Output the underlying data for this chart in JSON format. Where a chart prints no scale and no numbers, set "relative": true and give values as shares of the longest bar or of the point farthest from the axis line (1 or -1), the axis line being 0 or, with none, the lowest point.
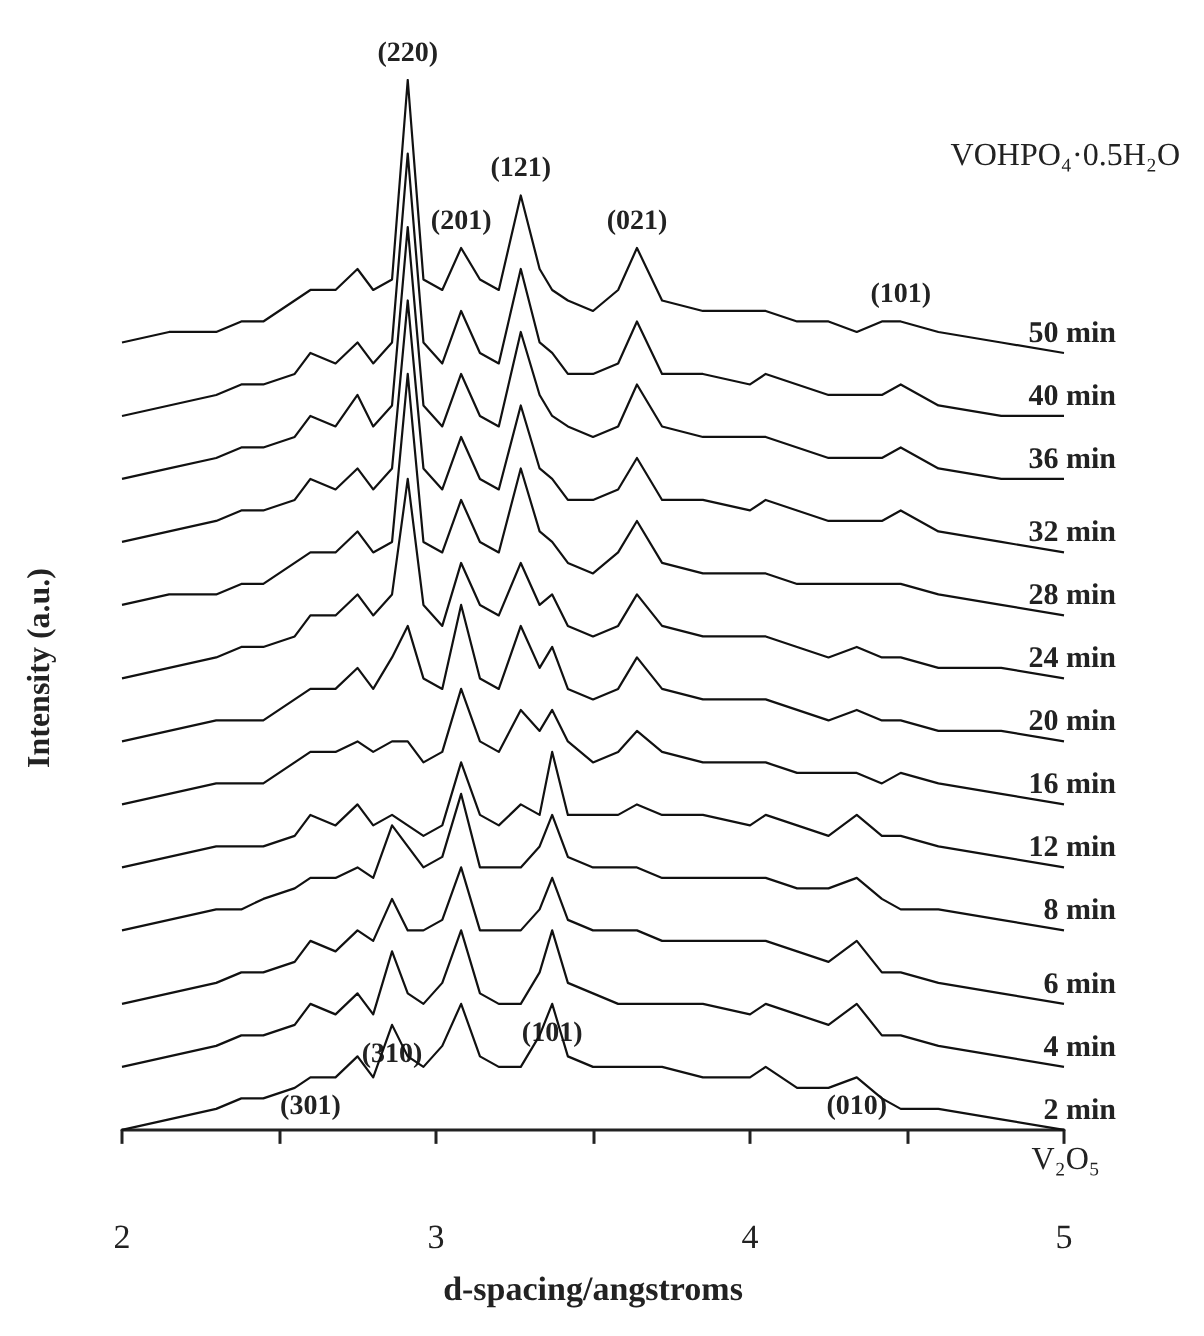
{
  "chart_data": {
    "type": "line",
    "relative": true,
    "xlabel": "d-spacing/angstroms",
    "ylabel": "Intensity (a.u.)",
    "xlim": [
      2,
      5
    ],
    "xticks": [
      2,
      {
        "value": 2.5,
        "label": null
      },
      3,
      {
        "value": 3.5,
        "label": null
      },
      4,
      {
        "value": 4.5,
        "label": null
      },
      5
    ],
    "legend": false,
    "grid": false,
    "marker": "none",
    "x": [
      2.0,
      2.15,
      2.3,
      2.38,
      2.45,
      2.55,
      2.6,
      2.68,
      2.75,
      2.8,
      2.86,
      2.91,
      2.96,
      3.02,
      3.08,
      3.14,
      3.2,
      3.27,
      3.33,
      3.37,
      3.42,
      3.5,
      3.58,
      3.64,
      3.72,
      3.85,
      4.0,
      4.05,
      4.15,
      4.25,
      4.34,
      4.42,
      4.48,
      4.6,
      4.8,
      5.0
    ],
    "series": [
      {
        "name": "50 min",
        "color": "#111111",
        "values": [
          0.75,
          0.76,
          0.76,
          0.77,
          0.77,
          0.79,
          0.8,
          0.8,
          0.82,
          0.8,
          0.81,
          1.0,
          0.81,
          0.8,
          0.84,
          0.81,
          0.8,
          0.89,
          0.82,
          0.8,
          0.79,
          0.78,
          0.8,
          0.84,
          0.79,
          0.78,
          0.78,
          0.78,
          0.77,
          0.77,
          0.76,
          0.77,
          0.77,
          0.76,
          0.75,
          0.74
        ]
      },
      {
        "name": "40 min",
        "color": "#111111",
        "values": [
          0.68,
          0.69,
          0.7,
          0.71,
          0.71,
          0.72,
          0.74,
          0.73,
          0.75,
          0.73,
          0.75,
          0.93,
          0.75,
          0.73,
          0.78,
          0.74,
          0.73,
          0.82,
          0.75,
          0.74,
          0.72,
          0.72,
          0.73,
          0.77,
          0.72,
          0.72,
          0.71,
          0.72,
          0.71,
          0.7,
          0.7,
          0.7,
          0.71,
          0.69,
          0.68,
          0.68
        ]
      },
      {
        "name": "36 min",
        "color": "#111111",
        "values": [
          0.62,
          0.63,
          0.64,
          0.65,
          0.65,
          0.66,
          0.68,
          0.67,
          0.7,
          0.67,
          0.69,
          0.86,
          0.69,
          0.67,
          0.72,
          0.68,
          0.67,
          0.76,
          0.7,
          0.68,
          0.67,
          0.66,
          0.67,
          0.71,
          0.67,
          0.66,
          0.66,
          0.66,
          0.65,
          0.64,
          0.64,
          0.64,
          0.65,
          0.63,
          0.62,
          0.62
        ]
      },
      {
        "name": "32 min",
        "color": "#111111",
        "values": [
          0.56,
          0.57,
          0.58,
          0.59,
          0.59,
          0.6,
          0.62,
          0.61,
          0.63,
          0.61,
          0.63,
          0.79,
          0.63,
          0.61,
          0.66,
          0.62,
          0.61,
          0.69,
          0.63,
          0.62,
          0.6,
          0.6,
          0.61,
          0.64,
          0.6,
          0.6,
          0.59,
          0.6,
          0.59,
          0.58,
          0.58,
          0.58,
          0.59,
          0.57,
          0.56,
          0.55
        ]
      },
      {
        "name": "28 min",
        "color": "#111111",
        "values": [
          0.5,
          0.51,
          0.51,
          0.52,
          0.52,
          0.54,
          0.55,
          0.55,
          0.57,
          0.55,
          0.56,
          0.72,
          0.56,
          0.55,
          0.6,
          0.56,
          0.55,
          0.63,
          0.57,
          0.56,
          0.54,
          0.53,
          0.55,
          0.58,
          0.54,
          0.53,
          0.53,
          0.53,
          0.52,
          0.52,
          0.52,
          0.52,
          0.52,
          0.51,
          0.5,
          0.49
        ]
      },
      {
        "name": "24 min",
        "color": "#111111",
        "values": [
          0.43,
          0.44,
          0.45,
          0.46,
          0.46,
          0.47,
          0.49,
          0.49,
          0.51,
          0.49,
          0.51,
          0.62,
          0.5,
          0.48,
          0.54,
          0.5,
          0.49,
          0.54,
          0.5,
          0.51,
          0.48,
          0.47,
          0.48,
          0.51,
          0.48,
          0.47,
          0.47,
          0.47,
          0.46,
          0.45,
          0.46,
          0.45,
          0.45,
          0.44,
          0.44,
          0.43
        ]
      },
      {
        "name": "20 min",
        "color": "#111111",
        "values": [
          0.37,
          0.38,
          0.39,
          0.39,
          0.39,
          0.41,
          0.42,
          0.42,
          0.44,
          0.42,
          0.45,
          0.48,
          0.43,
          0.42,
          0.5,
          0.43,
          0.42,
          0.48,
          0.44,
          0.46,
          0.42,
          0.41,
          0.42,
          0.45,
          0.42,
          0.41,
          0.41,
          0.41,
          0.4,
          0.39,
          0.4,
          0.39,
          0.39,
          0.38,
          0.38,
          0.37
        ]
      },
      {
        "name": "16 min",
        "color": "#111111",
        "values": [
          0.31,
          0.32,
          0.33,
          0.33,
          0.33,
          0.35,
          0.36,
          0.36,
          0.37,
          0.36,
          0.37,
          0.37,
          0.35,
          0.36,
          0.42,
          0.37,
          0.36,
          0.4,
          0.38,
          0.4,
          0.37,
          0.35,
          0.36,
          0.38,
          0.36,
          0.35,
          0.35,
          0.35,
          0.34,
          0.34,
          0.34,
          0.33,
          0.34,
          0.33,
          0.32,
          0.31
        ]
      },
      {
        "name": "12 min",
        "color": "#111111",
        "values": [
          0.25,
          0.26,
          0.27,
          0.27,
          0.27,
          0.28,
          0.3,
          0.29,
          0.31,
          0.29,
          0.3,
          0.29,
          0.28,
          0.29,
          0.35,
          0.3,
          0.29,
          0.31,
          0.3,
          0.36,
          0.3,
          0.3,
          0.3,
          0.31,
          0.3,
          0.3,
          0.29,
          0.3,
          0.29,
          0.28,
          0.3,
          0.28,
          0.28,
          0.27,
          0.26,
          0.25
        ]
      },
      {
        "name": "8 min",
        "color": "#111111",
        "values": [
          0.19,
          0.2,
          0.21,
          0.21,
          0.22,
          0.23,
          0.24,
          0.24,
          0.25,
          0.24,
          0.29,
          0.27,
          0.25,
          0.26,
          0.32,
          0.25,
          0.25,
          0.25,
          0.27,
          0.3,
          0.26,
          0.25,
          0.25,
          0.25,
          0.24,
          0.24,
          0.24,
          0.24,
          0.23,
          0.23,
          0.24,
          0.22,
          0.21,
          0.21,
          0.2,
          0.19
        ]
      },
      {
        "name": "6 min",
        "color": "#111111",
        "values": [
          0.12,
          0.13,
          0.14,
          0.15,
          0.15,
          0.16,
          0.18,
          0.17,
          0.19,
          0.18,
          0.22,
          0.19,
          0.19,
          0.2,
          0.25,
          0.19,
          0.19,
          0.19,
          0.21,
          0.24,
          0.2,
          0.19,
          0.19,
          0.19,
          0.18,
          0.18,
          0.18,
          0.18,
          0.17,
          0.16,
          0.18,
          0.15,
          0.15,
          0.14,
          0.13,
          0.12
        ]
      },
      {
        "name": "4 min",
        "color": "#111111",
        "values": [
          0.06,
          0.07,
          0.08,
          0.09,
          0.09,
          0.1,
          0.12,
          0.11,
          0.13,
          0.11,
          0.17,
          0.13,
          0.12,
          0.14,
          0.19,
          0.13,
          0.12,
          0.12,
          0.15,
          0.19,
          0.14,
          0.13,
          0.12,
          0.12,
          0.12,
          0.12,
          0.11,
          0.12,
          0.11,
          0.1,
          0.12,
          0.09,
          0.09,
          0.08,
          0.07,
          0.06
        ]
      },
      {
        "name": "2 min",
        "color": "#111111",
        "values": [
          0.0,
          0.01,
          0.02,
          0.03,
          0.03,
          0.04,
          0.05,
          0.05,
          0.07,
          0.05,
          0.1,
          0.07,
          0.06,
          0.08,
          0.12,
          0.07,
          0.06,
          0.06,
          0.09,
          0.12,
          0.07,
          0.06,
          0.06,
          0.06,
          0.06,
          0.05,
          0.05,
          0.06,
          0.04,
          0.04,
          0.05,
          0.03,
          0.02,
          0.02,
          0.01,
          0.0
        ]
      }
    ],
    "annotations": [
      {
        "text": "(220)",
        "x": 2.91,
        "y": 1.0
      },
      {
        "text": "(201)",
        "x": 3.08,
        "y": 0.84
      },
      {
        "text": "(121)",
        "x": 3.27,
        "y": 0.89
      },
      {
        "text": "(021)",
        "x": 3.64,
        "y": 0.84
      },
      {
        "text": "(101)",
        "x": 4.48,
        "y": 0.77
      },
      {
        "text": "(301)",
        "x": 2.6,
        "y": 0.05
      },
      {
        "text": "(310)",
        "x": 2.86,
        "y": 0.1
      },
      {
        "text": "(101)",
        "x": 3.37,
        "y": 0.12
      },
      {
        "text": "(010)",
        "x": 4.34,
        "y": 0.05
      },
      "VOHPO₄·0.5H₂O",
      "V₂O₅"
    ]
  }
}
